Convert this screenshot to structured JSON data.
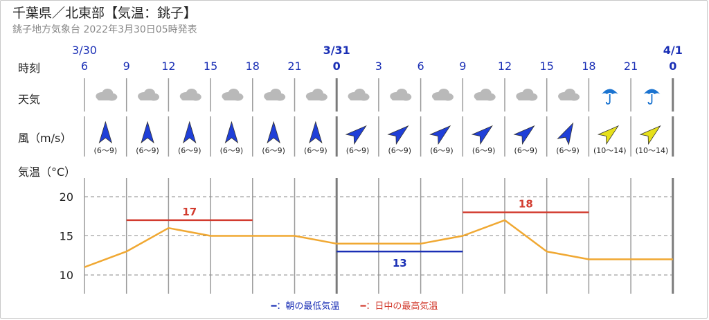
{
  "header": {
    "title": "千葉県／北東部【気温：銚子】",
    "subtitle": "銚子地方気象台 2022年3月30日05時発表"
  },
  "row_labels": {
    "time": "時刻",
    "weather": "天気",
    "wind": "風（m/s）",
    "temp": "気温（°C）"
  },
  "dates": [
    {
      "label": "3/30",
      "slot": 0
    },
    {
      "label": "3/31",
      "slot": 6
    },
    {
      "label": "4/1",
      "slot": 14
    }
  ],
  "hours": [
    "6",
    "9",
    "12",
    "15",
    "18",
    "21",
    "0",
    "3",
    "6",
    "9",
    "12",
    "15",
    "18",
    "21",
    "0"
  ],
  "weather": [
    "cloudy",
    "cloudy",
    "cloudy",
    "cloudy",
    "cloudy",
    "cloudy",
    "cloudy",
    "cloudy",
    "cloudy",
    "cloudy",
    "cloudy",
    "cloudy",
    "rain",
    "rain"
  ],
  "wind": [
    {
      "dir": "S",
      "speed": "(6〜9)",
      "color": "#1f3fd8"
    },
    {
      "dir": "S",
      "speed": "(6〜9)",
      "color": "#1f3fd8"
    },
    {
      "dir": "S",
      "speed": "(6〜9)",
      "color": "#1f3fd8"
    },
    {
      "dir": "S",
      "speed": "(6〜9)",
      "color": "#1f3fd8"
    },
    {
      "dir": "S",
      "speed": "(6〜9)",
      "color": "#1f3fd8"
    },
    {
      "dir": "S",
      "speed": "(6〜9)",
      "color": "#1f3fd8"
    },
    {
      "dir": "SW",
      "speed": "(6〜9)",
      "color": "#1f3fd8"
    },
    {
      "dir": "SW",
      "speed": "(6〜9)",
      "color": "#1f3fd8"
    },
    {
      "dir": "SW",
      "speed": "(6〜9)",
      "color": "#1f3fd8"
    },
    {
      "dir": "SW",
      "speed": "(6〜9)",
      "color": "#1f3fd8"
    },
    {
      "dir": "SW",
      "speed": "(6〜9)",
      "color": "#1f3fd8"
    },
    {
      "dir": "SSW",
      "speed": "(6〜9)",
      "color": "#1f3fd8"
    },
    {
      "dir": "SW",
      "speed": "(10〜14)",
      "color": "#e6e01a"
    },
    {
      "dir": "SW",
      "speed": "(10〜14)",
      "color": "#e6e01a"
    }
  ],
  "chart_data": {
    "type": "line",
    "x": [
      "3/30 6",
      "9",
      "12",
      "15",
      "18",
      "21",
      "3/31 0",
      "3",
      "6",
      "9",
      "12",
      "15",
      "18",
      "21",
      "4/1 0"
    ],
    "series": [
      {
        "values": [
          11,
          13,
          16,
          15,
          15,
          15,
          14,
          14,
          14,
          15,
          17,
          13,
          12,
          12,
          12
        ],
        "color": "#f0a832"
      }
    ],
    "ylim": [
      8,
      22
    ],
    "yticks": [
      10,
      15,
      20
    ],
    "grid": true,
    "annotations": [
      {
        "type": "min",
        "value": 13,
        "label": "13",
        "from": 6,
        "to": 9,
        "color": "#1a2fb5"
      },
      {
        "type": "max",
        "value": 17,
        "label": "17",
        "from": 1,
        "to": 4,
        "color": "#d23b2e"
      },
      {
        "type": "max",
        "value": 18,
        "label": "18",
        "from": 9,
        "to": 12,
        "color": "#d23b2e"
      }
    ],
    "legend": {
      "min_label": "━：朝の最低気温",
      "max_label": "━：日中の最高気温",
      "placement": "bottom"
    }
  }
}
